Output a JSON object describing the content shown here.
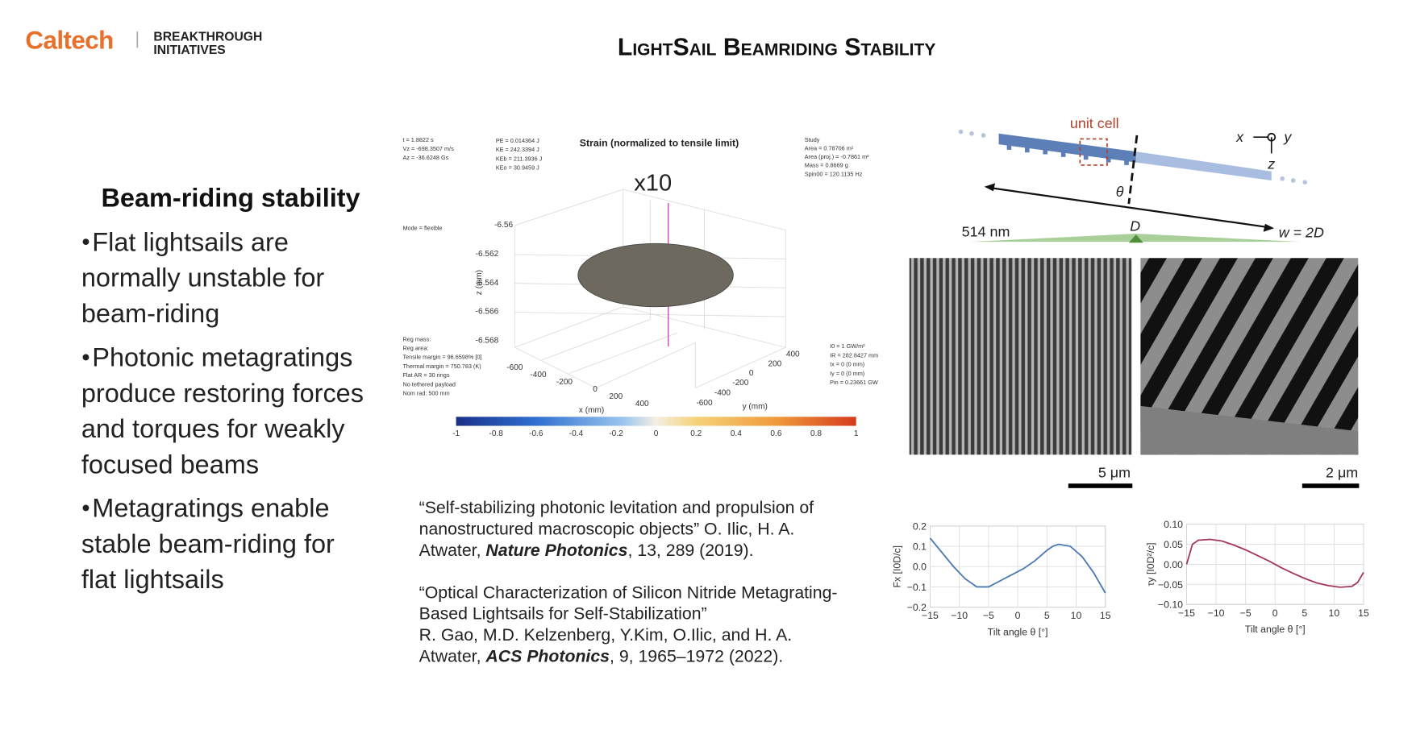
{
  "header": {
    "logo": "Caltech",
    "partner": [
      "BREAKTHROUGH",
      "INITIATIVES"
    ],
    "title": "LightSail Beamriding Stability"
  },
  "left": {
    "heading": "Beam-riding stability",
    "bullets": [
      [
        "Flat lightsails are",
        "normally unstable for",
        "beam-riding"
      ],
      [
        "Photonic metagratings",
        "produce restoring forces",
        "and torques for weakly",
        "focused beams"
      ],
      [
        "Metagratings enable",
        "stable beam-riding  for",
        "flat lightsails"
      ]
    ]
  },
  "simulation": {
    "title": "Strain (normalized to tensile limit)",
    "magnification": "x10",
    "z_label": "z (mm)",
    "x_label": "x (mm)",
    "y_label": "y (mm)",
    "z_ticks": [
      "-6.56",
      "-6.562",
      "-6.564",
      "-6.566",
      "-6.568"
    ],
    "x_ticks": [
      "-600",
      "-400",
      "-200",
      "0",
      "200",
      "400"
    ],
    "y_ticks": [
      "400",
      "200",
      "0",
      "-200",
      "-400",
      "-600"
    ],
    "colorbar_ticks": [
      "-1",
      "-0.8",
      "-0.6",
      "-0.4",
      "-0.2",
      "0",
      "0.2",
      "0.4",
      "0.6",
      "0.8",
      "1"
    ],
    "readouts": [
      [
        "t = 1.8822 s",
        "Vz = -698.3507 m/s",
        "Az = -36.6248 Gs"
      ],
      [
        "PE = 0.014364 J",
        "KE = 242.3394 J",
        "KEb = 211.3936 J",
        "KEo = 30.9459 J"
      ],
      [
        "Study",
        "Area = 0.78706 m²",
        "Area (proj.) = -0.7861 m²",
        "Mass = 0.8669 g",
        "Spin00 = 120.1135 Hz"
      ],
      [
        "I0 = 1 GW/m²",
        "IR = 282.8427 mm",
        "Ix = 0 (0 mm)",
        "Iy = 0 (0 mm)",
        "Pin = 0.23661 GW"
      ],
      [
        "Reg mass:",
        "Reg area:",
        "Tensile margin = 96.6598% [0]",
        "Thermal margin = 750.783 (K)",
        "Flat AR = 30 rings",
        "No tethered payload",
        "Nom rad: 500 mm"
      ],
      [
        "Mode = flexible"
      ]
    ]
  },
  "diagram": {
    "unit_cell": "unit cell",
    "axis_x": "x",
    "axis_y": "y",
    "axis_z": "z",
    "angle": "θ",
    "wavelength": "514 nm",
    "diameter": "D",
    "beam_width": "w = 2D"
  },
  "sem": {
    "scale_left": "5 μm",
    "scale_right": "2 μm"
  },
  "references": [
    [
      [
        "“Self-stabilizing photonic levitation and propulsion of"
      ],
      [
        "nanostructured macroscopic objects” O. Ilic, H. A."
      ],
      [
        "Atwater, ",
        "Nature Photonics",
        ", 13, 289 (2019)."
      ]
    ],
    [
      [
        "“Optical Characterization of Silicon Nitride Metagrating-"
      ],
      [
        "Based Lightsails for Self-Stabilization”"
      ],
      [
        "R. Gao, M.D. Kelzenberg, Y.Kim, O.Ilic, and H. A."
      ],
      [
        "Atwater, ",
        "ACS Photonics",
        ", 9, 1965–1972 (2022)."
      ]
    ]
  ],
  "chart_data": [
    {
      "type": "line",
      "xlabel": "Tilt angle θ [°]",
      "ylabel": "Fx [I0D/c]",
      "grid": true,
      "x": [
        -15,
        -13,
        -11,
        -9,
        -7,
        -5,
        -3,
        -1,
        1,
        3,
        5,
        6,
        7,
        9,
        11,
        13,
        14,
        15
      ],
      "series": [
        {
          "color": "#4a78b0",
          "values": [
            0.14,
            0.07,
            0.0,
            -0.06,
            -0.1,
            -0.1,
            -0.07,
            -0.04,
            -0.01,
            0.03,
            0.08,
            0.1,
            0.11,
            0.1,
            0.05,
            -0.03,
            -0.08,
            -0.13
          ]
        }
      ],
      "xlim": [
        -15,
        15
      ],
      "ylim": [
        -0.2,
        0.2
      ],
      "xticks": [
        {
          "value": -15,
          "label": "−15"
        },
        {
          "value": -10,
          "label": "−10"
        },
        {
          "value": -5,
          "label": "−5"
        },
        0,
        5,
        10,
        15
      ],
      "yticks": [
        0.2,
        0.1,
        {
          "value": 0,
          "label": "0.0"
        },
        {
          "value": -0.1,
          "label": "−0.1"
        },
        {
          "value": -0.2,
          "label": "−0.2"
        }
      ]
    },
    {
      "type": "line",
      "xlabel": "Tilt angle θ [°]",
      "ylabel": "τy [I0D²/c]",
      "grid": true,
      "x": [
        -15,
        -14,
        -13,
        -11,
        -9,
        -7,
        -5,
        -3,
        -1,
        1,
        3,
        5,
        7,
        9,
        11,
        13,
        14,
        15
      ],
      "series": [
        {
          "color": "#a3365f",
          "values": [
            0.0,
            0.05,
            0.06,
            0.062,
            0.058,
            0.048,
            0.036,
            0.022,
            0.008,
            -0.008,
            -0.022,
            -0.035,
            -0.046,
            -0.053,
            -0.057,
            -0.055,
            -0.045,
            -0.02
          ]
        }
      ],
      "xlim": [
        -15,
        15
      ],
      "ylim": [
        -0.1,
        0.1
      ],
      "xticks": [
        {
          "value": -15,
          "label": "−15"
        },
        {
          "value": -10,
          "label": "−10"
        },
        {
          "value": -5,
          "label": "−5"
        },
        0,
        5,
        10,
        15
      ],
      "yticks": [
        {
          "value": 0.1,
          "label": "0.10"
        },
        0.05,
        {
          "value": 0,
          "label": "0.00"
        },
        {
          "value": -0.05,
          "label": "−0.05"
        },
        {
          "value": -0.1,
          "label": "−0.10"
        }
      ]
    }
  ]
}
